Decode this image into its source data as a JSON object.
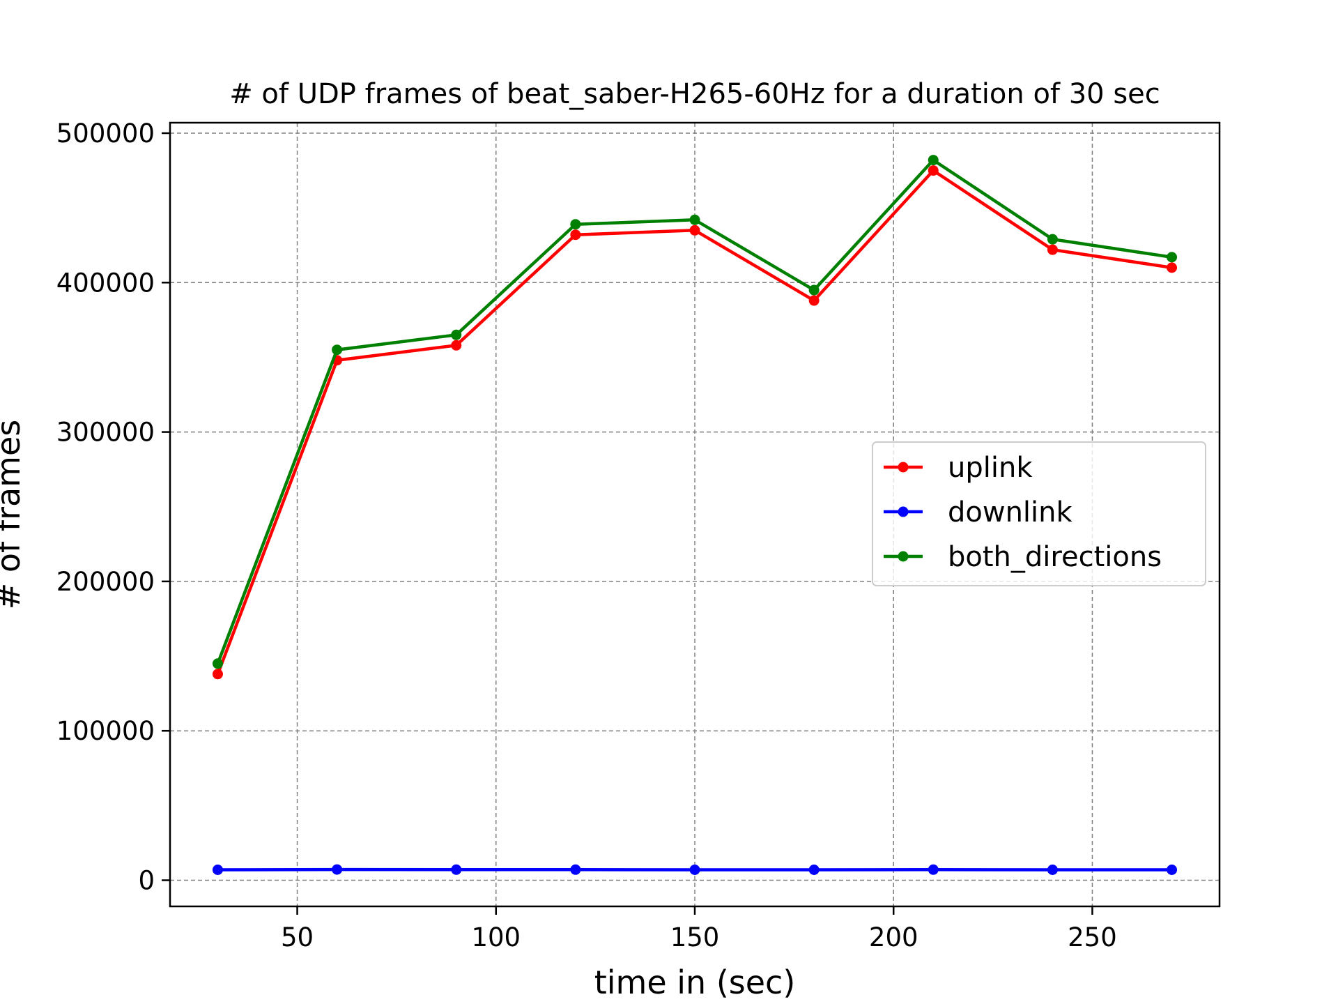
{
  "chart_data": {
    "type": "line",
    "title": "# of UDP frames of beat_saber-H265-60Hz for a duration of 30 sec",
    "xlabel": "time in (sec)",
    "ylabel": "# of frames",
    "xlim": [
      18,
      282
    ],
    "ylim": [
      -17500,
      507000
    ],
    "x_ticks": [
      50,
      100,
      150,
      200,
      250
    ],
    "y_ticks": [
      0,
      100000,
      200000,
      300000,
      400000,
      500000
    ],
    "x_tick_labels": [
      "50",
      "100",
      "150",
      "200",
      "250"
    ],
    "y_tick_labels": [
      "0",
      "100000",
      "200000",
      "300000",
      "400000",
      "500000"
    ],
    "grid": true,
    "legend_position": "center-right",
    "x": [
      30,
      60,
      90,
      120,
      150,
      180,
      210,
      240,
      270
    ],
    "series": [
      {
        "name": "uplink",
        "color": "#ff0000",
        "values": [
          138000,
          348000,
          358000,
          432000,
          435000,
          388000,
          475000,
          422000,
          410000
        ]
      },
      {
        "name": "downlink",
        "color": "#0000ff",
        "values": [
          7000,
          7200,
          7100,
          7100,
          7000,
          7000,
          7100,
          7000,
          7000
        ]
      },
      {
        "name": "both_directions",
        "color": "#008000",
        "values": [
          145000,
          355000,
          365000,
          439000,
          442000,
          395000,
          482000,
          429000,
          417000
        ]
      }
    ]
  }
}
